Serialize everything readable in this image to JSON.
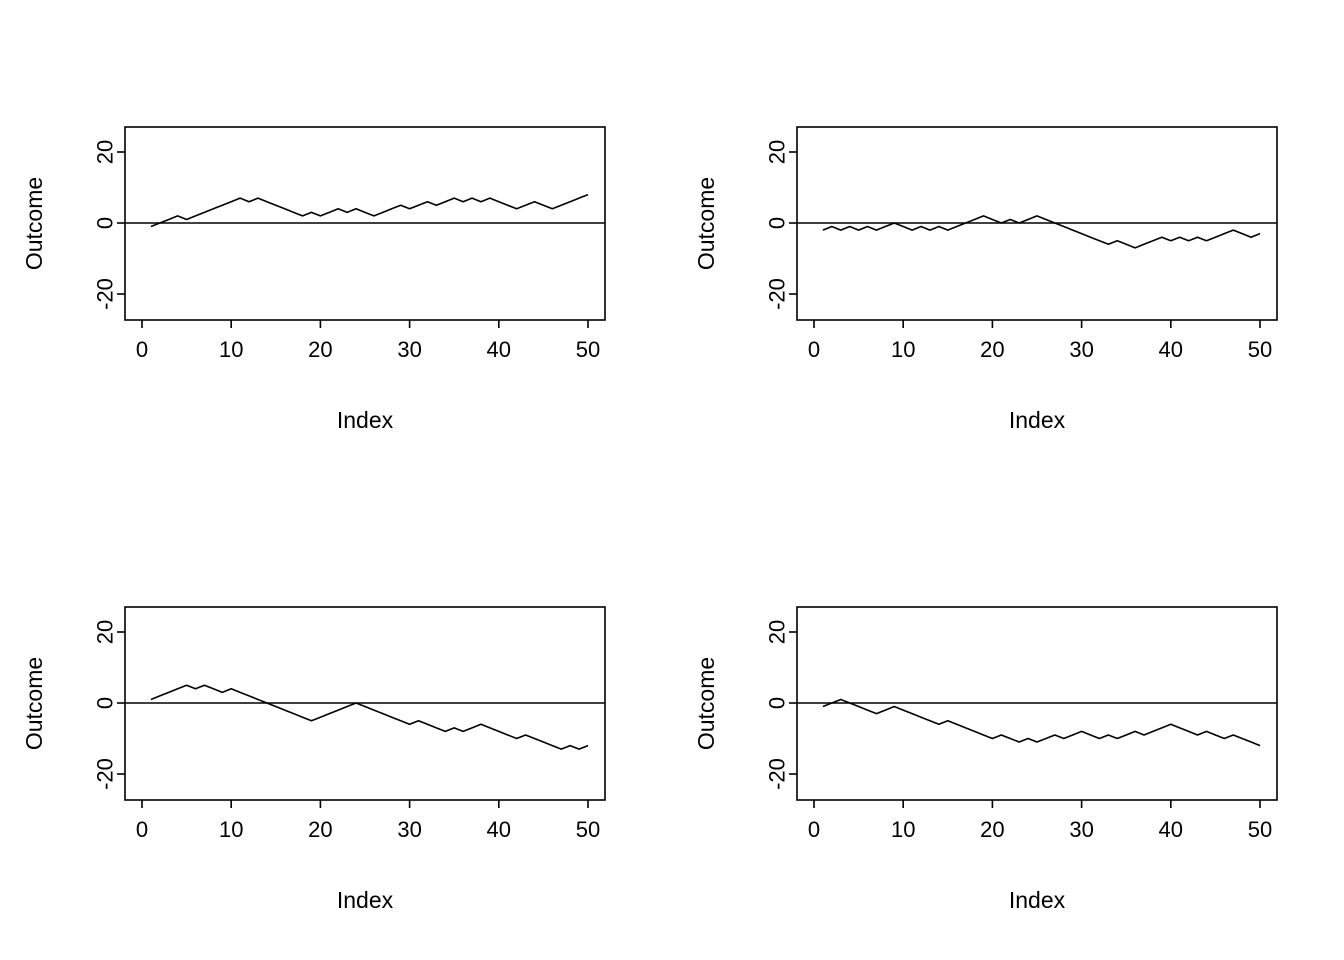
{
  "figure": {
    "background": "#ffffff",
    "line_color": "#000000",
    "layout": "2x2 grid of line plots"
  },
  "chart_data": [
    {
      "type": "line",
      "panel": "top-left",
      "title": "",
      "xlabel": "Index",
      "ylabel": "Outcome",
      "xticks": [
        0,
        10,
        20,
        30,
        40,
        50
      ],
      "yticks": [
        -20,
        0,
        20
      ],
      "xlim": [
        -1,
        52
      ],
      "ylim": [
        -27,
        27
      ],
      "hline": 0,
      "grid": false,
      "legend": "none",
      "x": [
        1,
        2,
        3,
        4,
        5,
        6,
        7,
        8,
        9,
        10,
        11,
        12,
        13,
        14,
        15,
        16,
        17,
        18,
        19,
        20,
        21,
        22,
        23,
        24,
        25,
        26,
        27,
        28,
        29,
        30,
        31,
        32,
        33,
        34,
        35,
        36,
        37,
        38,
        39,
        40,
        41,
        42,
        43,
        44,
        45,
        46,
        47,
        48,
        49,
        50
      ],
      "y": [
        -1,
        0,
        1,
        2,
        1,
        2,
        3,
        4,
        5,
        6,
        7,
        6,
        7,
        6,
        5,
        4,
        3,
        2,
        3,
        2,
        3,
        4,
        3,
        4,
        3,
        2,
        3,
        4,
        5,
        4,
        5,
        6,
        5,
        6,
        7,
        6,
        7,
        6,
        7,
        6,
        5,
        4,
        5,
        6,
        5,
        4,
        5,
        6,
        7,
        8
      ]
    },
    {
      "type": "line",
      "panel": "top-right",
      "title": "",
      "xlabel": "Index",
      "ylabel": "Outcome",
      "xticks": [
        0,
        10,
        20,
        30,
        40,
        50
      ],
      "yticks": [
        -20,
        0,
        20
      ],
      "xlim": [
        -1,
        52
      ],
      "ylim": [
        -27,
        27
      ],
      "hline": 0,
      "grid": false,
      "legend": "none",
      "x": [
        1,
        2,
        3,
        4,
        5,
        6,
        7,
        8,
        9,
        10,
        11,
        12,
        13,
        14,
        15,
        16,
        17,
        18,
        19,
        20,
        21,
        22,
        23,
        24,
        25,
        26,
        27,
        28,
        29,
        30,
        31,
        32,
        33,
        34,
        35,
        36,
        37,
        38,
        39,
        40,
        41,
        42,
        43,
        44,
        45,
        46,
        47,
        48,
        49,
        50
      ],
      "y": [
        -2,
        -1,
        -2,
        -1,
        -2,
        -1,
        -2,
        -1,
        0,
        -1,
        -2,
        -1,
        -2,
        -1,
        -2,
        -1,
        0,
        1,
        2,
        1,
        0,
        1,
        0,
        1,
        2,
        1,
        0,
        -1,
        -2,
        -3,
        -4,
        -5,
        -6,
        -5,
        -6,
        -7,
        -6,
        -5,
        -4,
        -5,
        -4,
        -5,
        -4,
        -5,
        -4,
        -3,
        -2,
        -3,
        -4,
        -3
      ]
    },
    {
      "type": "line",
      "panel": "bottom-left",
      "title": "",
      "xlabel": "Index",
      "ylabel": "Outcome",
      "xticks": [
        0,
        10,
        20,
        30,
        40,
        50
      ],
      "yticks": [
        -20,
        0,
        20
      ],
      "xlim": [
        -1,
        52
      ],
      "ylim": [
        -27,
        27
      ],
      "hline": 0,
      "grid": false,
      "legend": "none",
      "x": [
        1,
        2,
        3,
        4,
        5,
        6,
        7,
        8,
        9,
        10,
        11,
        12,
        13,
        14,
        15,
        16,
        17,
        18,
        19,
        20,
        21,
        22,
        23,
        24,
        25,
        26,
        27,
        28,
        29,
        30,
        31,
        32,
        33,
        34,
        35,
        36,
        37,
        38,
        39,
        40,
        41,
        42,
        43,
        44,
        45,
        46,
        47,
        48,
        49,
        50
      ],
      "y": [
        1,
        2,
        3,
        4,
        5,
        4,
        5,
        4,
        3,
        4,
        3,
        2,
        1,
        0,
        -1,
        -2,
        -3,
        -4,
        -5,
        -4,
        -3,
        -2,
        -1,
        0,
        -1,
        -2,
        -3,
        -4,
        -5,
        -6,
        -5,
        -6,
        -7,
        -8,
        -7,
        -8,
        -7,
        -6,
        -7,
        -8,
        -9,
        -10,
        -9,
        -10,
        -11,
        -12,
        -13,
        -12,
        -13,
        -12
      ]
    },
    {
      "type": "line",
      "panel": "bottom-right",
      "title": "",
      "xlabel": "Index",
      "ylabel": "Outcome",
      "xticks": [
        0,
        10,
        20,
        30,
        40,
        50
      ],
      "yticks": [
        -20,
        0,
        20
      ],
      "xlim": [
        -1,
        52
      ],
      "ylim": [
        -27,
        27
      ],
      "hline": 0,
      "grid": false,
      "legend": "none",
      "x": [
        1,
        2,
        3,
        4,
        5,
        6,
        7,
        8,
        9,
        10,
        11,
        12,
        13,
        14,
        15,
        16,
        17,
        18,
        19,
        20,
        21,
        22,
        23,
        24,
        25,
        26,
        27,
        28,
        29,
        30,
        31,
        32,
        33,
        34,
        35,
        36,
        37,
        38,
        39,
        40,
        41,
        42,
        43,
        44,
        45,
        46,
        47,
        48,
        49,
        50
      ],
      "y": [
        -1,
        0,
        1,
        0,
        -1,
        -2,
        -3,
        -2,
        -1,
        -2,
        -3,
        -4,
        -5,
        -6,
        -5,
        -6,
        -7,
        -8,
        -9,
        -10,
        -9,
        -10,
        -11,
        -10,
        -11,
        -10,
        -9,
        -10,
        -9,
        -8,
        -9,
        -10,
        -9,
        -10,
        -9,
        -8,
        -9,
        -8,
        -7,
        -6,
        -7,
        -8,
        -9,
        -8,
        -9,
        -10,
        -9,
        -10,
        -11,
        -12
      ]
    }
  ]
}
